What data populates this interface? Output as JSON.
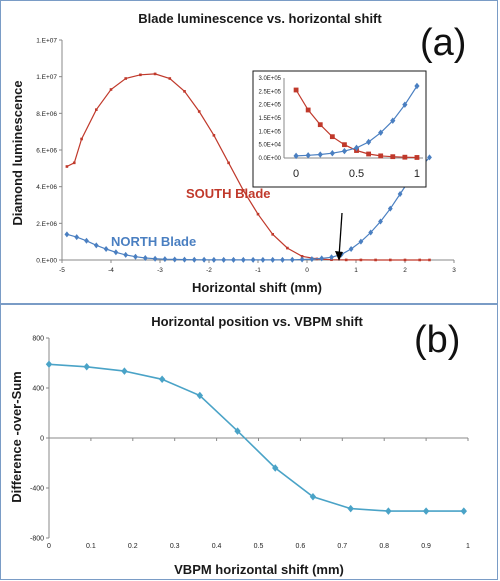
{
  "chart_data": [
    {
      "type": "line",
      "panel_label": "(a)",
      "title": "Blade luminescence vs. horizontal shift",
      "xlabel": "Horizontal shift (mm)",
      "ylabel": "Diamond luminescence",
      "xlim": [
        -5,
        3
      ],
      "ylim": [
        0,
        12000000
      ],
      "xticks": [
        "-5",
        "-4",
        "-3",
        "-2",
        "-1",
        "0",
        "1",
        "2",
        "3"
      ],
      "yticks": [
        "0.E+00",
        "2.E+06",
        "4.E+06",
        "6.E+06",
        "8.E+06",
        "1.E+07",
        "1.E+07"
      ],
      "grid": false,
      "series": [
        {
          "name": "SOUTH Blade",
          "color": "#c0392b",
          "marker": "square",
          "x": [
            -4.9,
            -4.75,
            -4.6,
            -4.3,
            -4.0,
            -3.7,
            -3.4,
            -3.1,
            -2.8,
            -2.5,
            -2.2,
            -1.9,
            -1.6,
            -1.3,
            -1.0,
            -0.7,
            -0.4,
            -0.1,
            0.2,
            0.5,
            0.8,
            1.1,
            1.4,
            1.7,
            2.0,
            2.3,
            2.5
          ],
          "values": [
            5100000,
            5300000,
            6600000,
            8200000,
            9300000,
            9900000,
            10100000,
            10150000,
            9900000,
            9200000,
            8100000,
            6800000,
            5300000,
            3800000,
            2500000,
            1400000,
            650000,
            200000,
            60000,
            15000,
            5000,
            3000,
            2000,
            2000,
            2000,
            2000,
            2000
          ]
        },
        {
          "name": "NORTH Blade",
          "color": "#4a7fc1",
          "marker": "diamond",
          "x": [
            -4.9,
            -4.7,
            -4.5,
            -4.3,
            -4.1,
            -3.9,
            -3.7,
            -3.5,
            -3.3,
            -3.1,
            -2.9,
            -2.7,
            -2.5,
            -2.3,
            -2.1,
            -1.9,
            -1.7,
            -1.5,
            -1.3,
            -1.1,
            -0.9,
            -0.7,
            -0.5,
            -0.3,
            -0.1,
            0.1,
            0.3,
            0.5,
            0.7,
            0.9,
            1.1,
            1.3,
            1.5,
            1.7,
            1.9,
            2.1,
            2.3,
            2.5
          ],
          "values": [
            1400000,
            1250000,
            1050000,
            800000,
            600000,
            420000,
            280000,
            180000,
            110000,
            70000,
            45000,
            30000,
            20000,
            15000,
            12000,
            10000,
            9000,
            8000,
            8000,
            8000,
            8000,
            8000,
            9000,
            12000,
            25000,
            50000,
            90000,
            150000,
            300000,
            600000,
            1000000,
            1500000,
            2100000,
            2800000,
            3600000,
            4400000,
            5000000,
            5600000
          ]
        }
      ],
      "inset": {
        "xticks": [
          "0",
          "0.5",
          "1"
        ],
        "yticks": [
          "0.0E+00",
          "5.0E+04",
          "1.0E+05",
          "1.5E+05",
          "2.0E+05",
          "2.5E+05",
          "3.0E+05"
        ],
        "xlim": [
          -0.1,
          1.05
        ],
        "ylim": [
          0,
          300000
        ],
        "series": [
          {
            "name": "SOUTH Blade",
            "color": "#c0392b",
            "x": [
              0,
              0.1,
              0.2,
              0.3,
              0.4,
              0.5,
              0.6,
              0.7,
              0.8,
              0.9,
              1.0
            ],
            "values": [
              255000,
              180000,
              125000,
              80000,
              50000,
              28000,
              15000,
              8000,
              5000,
              3000,
              2000
            ]
          },
          {
            "name": "NORTH Blade",
            "color": "#4a7fc1",
            "x": [
              0,
              0.1,
              0.2,
              0.3,
              0.4,
              0.5,
              0.6,
              0.7,
              0.8,
              0.9,
              1.0
            ],
            "values": [
              8000,
              10000,
              13000,
              18000,
              26000,
              38000,
              60000,
              95000,
              140000,
              200000,
              270000
            ]
          }
        ]
      }
    },
    {
      "type": "line",
      "panel_label": "(b)",
      "title": "Horizontal position vs. VBPM shift",
      "xlabel": "VBPM horizontal shift (mm)",
      "ylabel": "Difference -over-Sum",
      "xlim": [
        0,
        1
      ],
      "ylim": [
        -800,
        800
      ],
      "xticks": [
        "0",
        "0.1",
        "0.2",
        "0.3",
        "0.4",
        "0.5",
        "0.6",
        "0.7",
        "0.8",
        "0.9",
        "1"
      ],
      "yticks": [
        "-800",
        "-400",
        "0",
        "400",
        "800"
      ],
      "grid": false,
      "series": [
        {
          "name": "",
          "color": "#4aa3c7",
          "marker": "diamond",
          "x": [
            0,
            0.09,
            0.18,
            0.27,
            0.36,
            0.45,
            0.54,
            0.63,
            0.72,
            0.81,
            0.9,
            0.99
          ],
          "values": [
            590,
            570,
            535,
            470,
            340,
            55,
            -240,
            -470,
            -565,
            -585,
            -585,
            -585
          ]
        }
      ]
    }
  ]
}
